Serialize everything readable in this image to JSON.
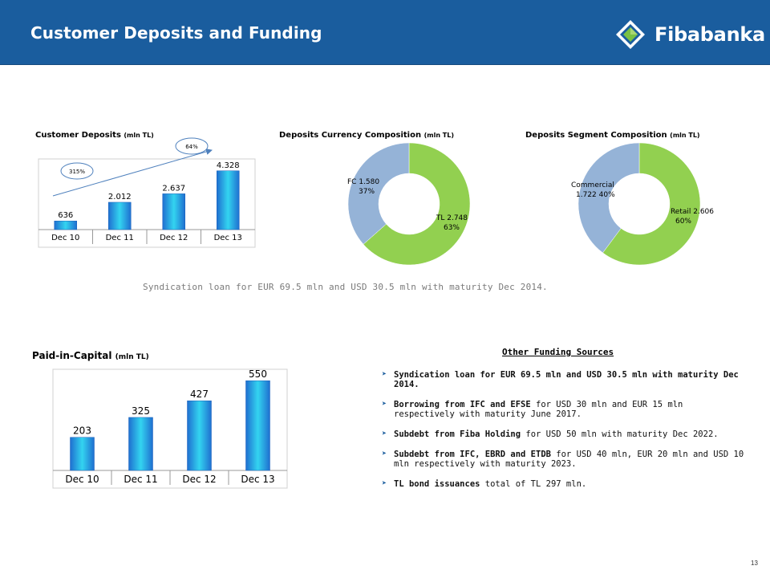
{
  "header": {
    "title": "Customer Deposits and Funding",
    "logo_text": "Fibabanka",
    "bg_color": "#1a5d9e"
  },
  "chart_data": [
    {
      "type": "bar",
      "title": "Customer Deposits",
      "unit": "(mln TL)",
      "categories": [
        "Dec 10",
        "Dec 11",
        "Dec 12",
        "Dec 13"
      ],
      "values": [
        636,
        2012,
        2637,
        4328
      ],
      "value_labels": [
        "636",
        "2.012",
        "2.637",
        "4.328"
      ],
      "annotations": [
        "315%",
        "64%"
      ],
      "ylim": [
        0,
        5200
      ]
    },
    {
      "type": "pie",
      "title": "Deposits Currency Composition",
      "unit": "(mln TL)",
      "slices": [
        {
          "label": "TL 2.748",
          "pct_label": "63%",
          "value": 2748,
          "color": "#92d050"
        },
        {
          "label": "FC 1.580",
          "pct_label": "37%",
          "value": 1580,
          "color": "#95b3d7"
        }
      ]
    },
    {
      "type": "pie",
      "title": "Deposits Segment Composition",
      "unit": "(mln TL)",
      "slices": [
        {
          "label": "Retail 2.606",
          "pct_label": "60%",
          "value": 2606,
          "color": "#92d050"
        },
        {
          "label": "Commercial 1.722",
          "pct_label": "40%",
          "value": 1722,
          "color": "#95b3d7"
        }
      ]
    },
    {
      "type": "bar",
      "title": "Paid-in-Capital",
      "unit": "(mln TL)",
      "categories": [
        "Dec 10",
        "Dec 11",
        "Dec 12",
        "Dec 13"
      ],
      "values": [
        203,
        325,
        427,
        550
      ],
      "value_labels": [
        "203",
        "325",
        "427",
        "550"
      ],
      "ylim": [
        0,
        620
      ]
    }
  ],
  "syndication_note": "Syndication loan for EUR 69.5 mln and USD 30.5 mln with maturity Dec 2014.",
  "other_funding": {
    "title": "Other Funding Sources",
    "items": [
      {
        "bold": "Syndication loan for EUR 69.5 mln and USD 30.5 mln with maturity Dec 2014.",
        "rest": ""
      },
      {
        "bold": "Borrowing from IFC and EFSE",
        "rest": " for USD 30 mln and EUR 15 mln respectively  with maturity  June 2017."
      },
      {
        "bold": "Subdebt from Fiba Holding",
        "rest": " for USD 50 mln with  maturity  Dec 2022."
      },
      {
        "bold": "Subdebt from IFC, EBRD and ETDB",
        "rest": " for USD 40 mln, EUR 20 mln and USD 10 mln respectively  with  maturity  2023."
      },
      {
        "bold": "TL bond issuances",
        "rest": " total  of TL 297 mln."
      }
    ]
  },
  "page_number": "13"
}
